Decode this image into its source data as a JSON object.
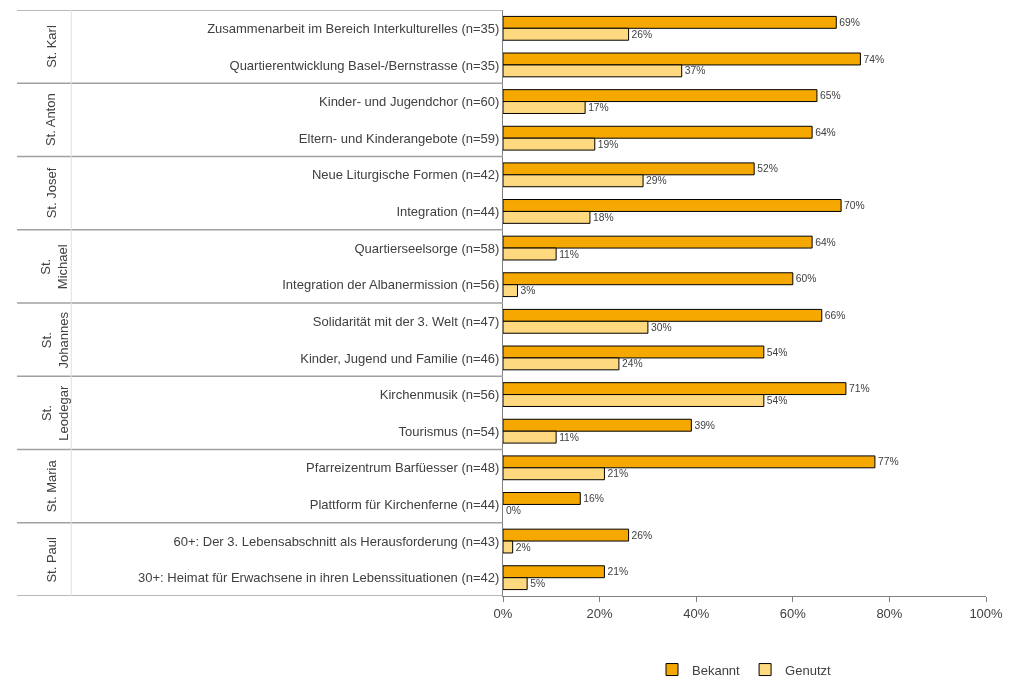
{
  "chart_data": {
    "type": "bar",
    "orientation": "horizontal",
    "categories": [
      "Zusammenarbeit im Bereich Interkulturelles (n=35)",
      "Quartierentwicklung Basel-/Bernstrasse (n=35)",
      "Kinder- und Jugendchor (n=60)",
      "Eltern- und Kinderangebote (n=59)",
      "Neue Liturgische Formen (n=42)",
      "Integration (n=44)",
      "Quartierseelsorge (n=58)",
      "Integration der Albanermission (n=56)",
      "Solidarität mit der 3. Welt (n=47)",
      "Kinder, Jugend und Familie (n=46)",
      "Kirchenmusik (n=56)",
      "Tourismus (n=54)",
      "Pfarreizentrum Barfüesser (n=48)",
      "Plattform für Kirchenferne (n=44)",
      "60+: Der 3. Lebensabschnitt als Herausforderung (n=43)",
      "30+: Heimat für Erwachsene in ihren Lebenssituationen (n=42)"
    ],
    "series": [
      {
        "name": "Bekannt",
        "color": "#f5a800",
        "values": [
          69,
          74,
          65,
          64,
          52,
          70,
          64,
          60,
          66,
          54,
          71,
          39,
          77,
          16,
          26,
          21
        ],
        "value_labels": [
          "69%",
          "74%",
          "65%",
          "64%",
          "52%",
          "70%",
          "64%",
          "60%",
          "66%",
          "54%",
          "71%",
          "39%",
          "77%",
          "16%",
          "26%",
          "21%"
        ]
      },
      {
        "name": "Genutzt",
        "color": "#ffd97f",
        "values": [
          26,
          37,
          17,
          19,
          29,
          18,
          11,
          3,
          30,
          24,
          54,
          11,
          21,
          0,
          2,
          5
        ],
        "value_labels": [
          "26%",
          "37%",
          "17%",
          "19%",
          "29%",
          "18%",
          "11%",
          "3%",
          "30%",
          "24%",
          "54%",
          "11%",
          "21%",
          "0%",
          "2%",
          "5%"
        ]
      }
    ],
    "annotations": [
      "St. Karl",
      "St. Anton",
      "St. Josef",
      "St. Michael",
      "St. Johannes",
      "St. Leodegar",
      "St. Maria",
      "St. Paul"
    ],
    "xlim": [
      0,
      100
    ],
    "xticks": [
      {
        "value": 0,
        "label": "0%"
      },
      {
        "value": 20,
        "label": "20%"
      },
      {
        "value": 40,
        "label": "40%"
      },
      {
        "value": 60,
        "label": "60%"
      },
      {
        "value": 80,
        "label": "80%"
      },
      {
        "value": 100,
        "label": "100%"
      }
    ],
    "legend": "bottom"
  }
}
